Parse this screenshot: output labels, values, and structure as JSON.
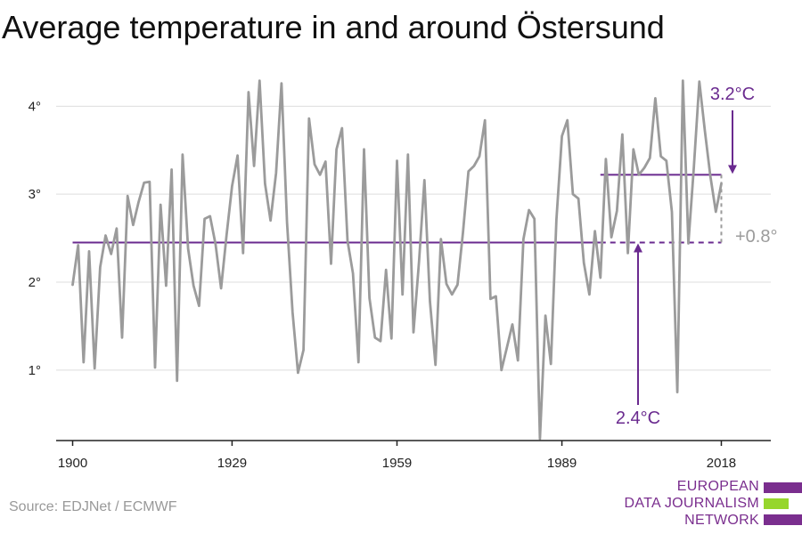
{
  "title": "Average temperature in and around Östersund",
  "source": "Source: EDJNet / ECMWF",
  "logo": {
    "line1": "EUROPEAN",
    "line2": "DATA JOURNALISM",
    "line3": "NETWORK"
  },
  "colors": {
    "series": "#9b9b9b",
    "accent": "#6a2a8f",
    "logo_purple": "#7a2e8e",
    "logo_green": "#96d62c",
    "grid": "#dddddd"
  },
  "chart_data": {
    "type": "line",
    "title": "Average temperature in and around Östersund",
    "xlabel": "",
    "ylabel": "",
    "xlim": [
      1897,
      2027
    ],
    "ylim": [
      0.2,
      4.6
    ],
    "x_ticks": [
      1900,
      1929,
      1959,
      1989,
      2018
    ],
    "y_ticks": [
      1,
      2,
      3,
      4
    ],
    "y_tick_labels": [
      "1°",
      "2°",
      "3°",
      "4°"
    ],
    "grid": "horizontal",
    "series": [
      {
        "x": [
          1900,
          1901,
          1902,
          1903,
          1904,
          1905,
          1906,
          1907,
          1908,
          1909,
          1910,
          1911,
          1912,
          1913,
          1914,
          1915,
          1916,
          1917,
          1918,
          1919,
          1920,
          1921,
          1922,
          1923,
          1924,
          1925,
          1926,
          1927,
          1928,
          1929,
          1930,
          1931,
          1932,
          1933,
          1934,
          1935,
          1936,
          1937,
          1938,
          1939,
          1940,
          1941,
          1942,
          1943,
          1944,
          1945,
          1946,
          1947,
          1948,
          1949,
          1950,
          1951,
          1952,
          1953,
          1954,
          1955,
          1956,
          1957,
          1958,
          1959,
          1960,
          1961,
          1962,
          1963,
          1964,
          1965,
          1966,
          1967,
          1968,
          1969,
          1970,
          1971,
          1972,
          1973,
          1974,
          1975,
          1976,
          1977,
          1978,
          1979,
          1980,
          1981,
          1982,
          1983,
          1984,
          1985,
          1986,
          1987,
          1988,
          1989,
          1990,
          1991,
          1992,
          1993,
          1994,
          1995,
          1996,
          1997,
          1998,
          1999,
          2000,
          2001,
          2002,
          2003,
          2004,
          2005,
          2006,
          2007,
          2008,
          2009,
          2010,
          2011,
          2012,
          2013,
          2014,
          2015,
          2016,
          2017,
          2018
        ],
        "values": [
          1.97,
          2.42,
          1.09,
          2.35,
          1.02,
          2.17,
          2.53,
          2.32,
          2.61,
          1.37,
          2.98,
          2.65,
          2.91,
          3.13,
          3.14,
          1.03,
          2.88,
          1.96,
          3.28,
          0.88,
          3.45,
          2.38,
          1.96,
          1.73,
          2.72,
          2.75,
          2.43,
          1.93,
          2.53,
          3.09,
          3.44,
          2.33,
          4.16,
          3.32,
          4.29,
          3.12,
          2.7,
          3.24,
          4.26,
          2.68,
          1.66,
          0.97,
          1.23,
          3.86,
          3.34,
          3.22,
          3.37,
          2.21,
          3.51,
          3.75,
          2.47,
          2.1,
          1.09,
          3.51,
          1.82,
          1.37,
          1.33,
          2.14,
          1.36,
          3.38,
          1.86,
          3.45,
          1.43,
          2.23,
          3.16,
          1.78,
          1.06,
          2.49,
          1.98,
          1.86,
          1.97,
          2.56,
          3.26,
          3.32,
          3.43,
          3.84,
          1.81,
          1.84,
          1.0,
          1.26,
          1.52,
          1.11,
          2.49,
          2.82,
          2.72,
          0.22,
          1.62,
          1.07,
          2.71,
          3.66,
          3.84,
          3.0,
          2.95,
          2.22,
          1.86,
          2.58,
          2.05,
          3.4,
          2.51,
          2.81,
          3.68,
          2.33,
          3.51,
          3.22,
          3.3,
          3.41,
          4.09,
          3.43,
          3.38,
          2.8,
          0.75,
          4.29,
          2.44,
          3.3,
          4.28,
          3.72,
          3.21,
          2.8,
          3.12
        ]
      }
    ],
    "baseline": {
      "from": 1900,
      "to": 2018,
      "value": 2.45,
      "label": "2.4°C"
    },
    "recent": {
      "from": 1996,
      "to": 2018,
      "value": 3.22,
      "label": "3.2°C"
    },
    "difference_label": "+0.8°"
  }
}
